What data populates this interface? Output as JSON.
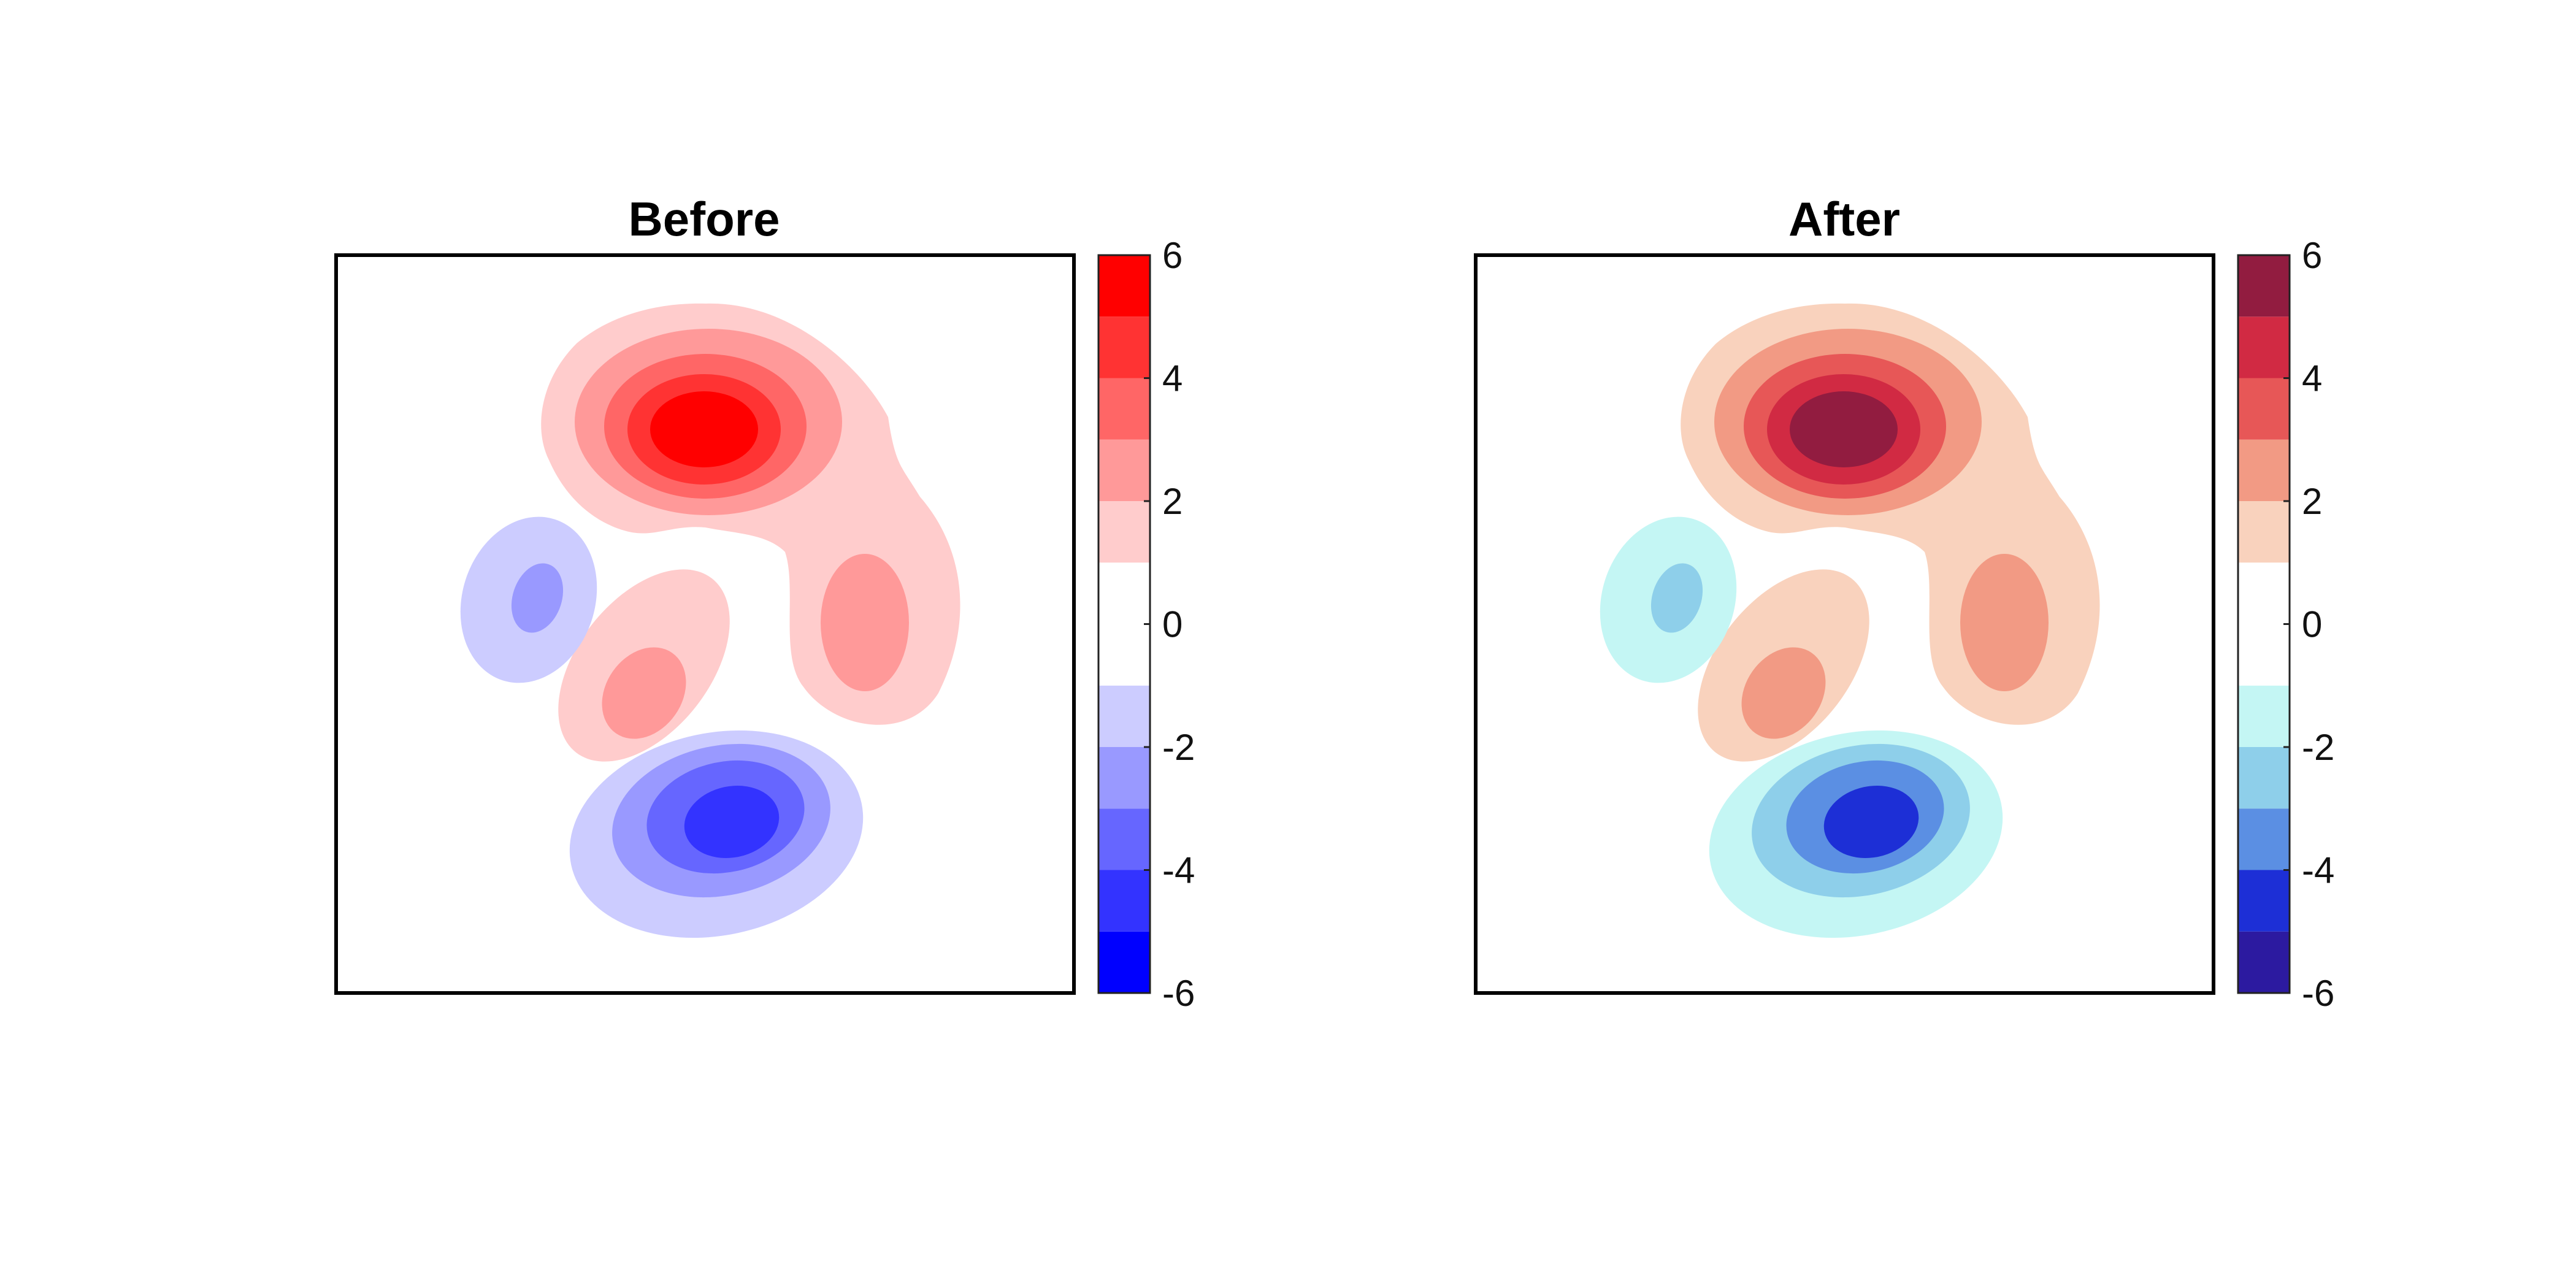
{
  "chart_data": [
    {
      "type": "heatmap",
      "subtype": "filled-contour",
      "title": "Before",
      "xlabel": "",
      "ylabel": "",
      "axis_ticks_shown": false,
      "grid": false,
      "colorbar": {
        "placement": "right",
        "range": [
          -6,
          6
        ],
        "tick_labels": [
          "6",
          "4",
          "2",
          "0",
          "-2",
          "-4",
          "-6"
        ],
        "levels": [
          -6,
          -5,
          -4,
          -3,
          -2,
          -1,
          1,
          2,
          3,
          4,
          5,
          6
        ],
        "band_colors": [
          "#0000ff",
          "#3333ff",
          "#6666ff",
          "#9999ff",
          "#ccccff",
          "#ffffff",
          "#ffcccc",
          "#ff9999",
          "#ff6666",
          "#ff3333",
          "#ff0000"
        ]
      }
    },
    {
      "type": "heatmap",
      "subtype": "filled-contour",
      "title": "After",
      "xlabel": "",
      "ylabel": "",
      "axis_ticks_shown": false,
      "grid": false,
      "colorbar": {
        "placement": "right",
        "range": [
          -6,
          6
        ],
        "tick_labels": [
          "6",
          "4",
          "2",
          "0",
          "-2",
          "-4",
          "-6"
        ],
        "levels": [
          -6,
          -5,
          -4,
          -3,
          -2,
          -1,
          1,
          2,
          3,
          4,
          5,
          6
        ],
        "band_colors": [
          "#2c1aa0",
          "#1d2fd6",
          "#5b8fe3",
          "#8ecfea",
          "#c4f6f4",
          "#ffffff",
          "#f9d2bd",
          "#f29a84",
          "#e75757",
          "#d12a43",
          "#921c40"
        ]
      }
    }
  ]
}
